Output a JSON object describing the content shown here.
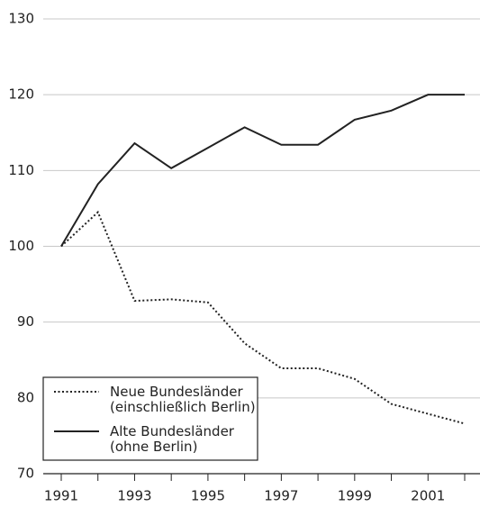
{
  "chart_data": {
    "type": "line",
    "x": [
      1991,
      1992,
      1993,
      1994,
      1995,
      1996,
      1997,
      1998,
      1999,
      2000,
      2001,
      2002
    ],
    "series": [
      {
        "name": "Neue Bundesländer\n(einschließlich Berlin)",
        "color": "#222222",
        "dash": "dotted",
        "values": [
          100,
          104.5,
          92.8,
          93.0,
          92.6,
          87.2,
          83.9,
          83.9,
          82.5,
          79.2,
          77.9,
          76.6
        ]
      },
      {
        "name": "Alte Bundesländer\n(ohne Berlin)",
        "color": "#222222",
        "dash": "solid",
        "values": [
          100,
          108.2,
          113.6,
          110.3,
          113.0,
          115.7,
          113.4,
          113.4,
          116.7,
          117.9,
          120,
          120
        ]
      }
    ],
    "xlim": [
      1990.5,
      2002.5
    ],
    "xticks": [
      1991,
      1993,
      1995,
      1997,
      1999,
      2001
    ],
    "xminor_ticks": [
      1992,
      1994,
      1996,
      1998,
      2000,
      2002
    ],
    "ylim": [
      70,
      130
    ],
    "yticks": [
      70,
      80,
      90,
      100,
      110,
      120,
      130
    ],
    "grid": true,
    "legend": "lower left"
  }
}
